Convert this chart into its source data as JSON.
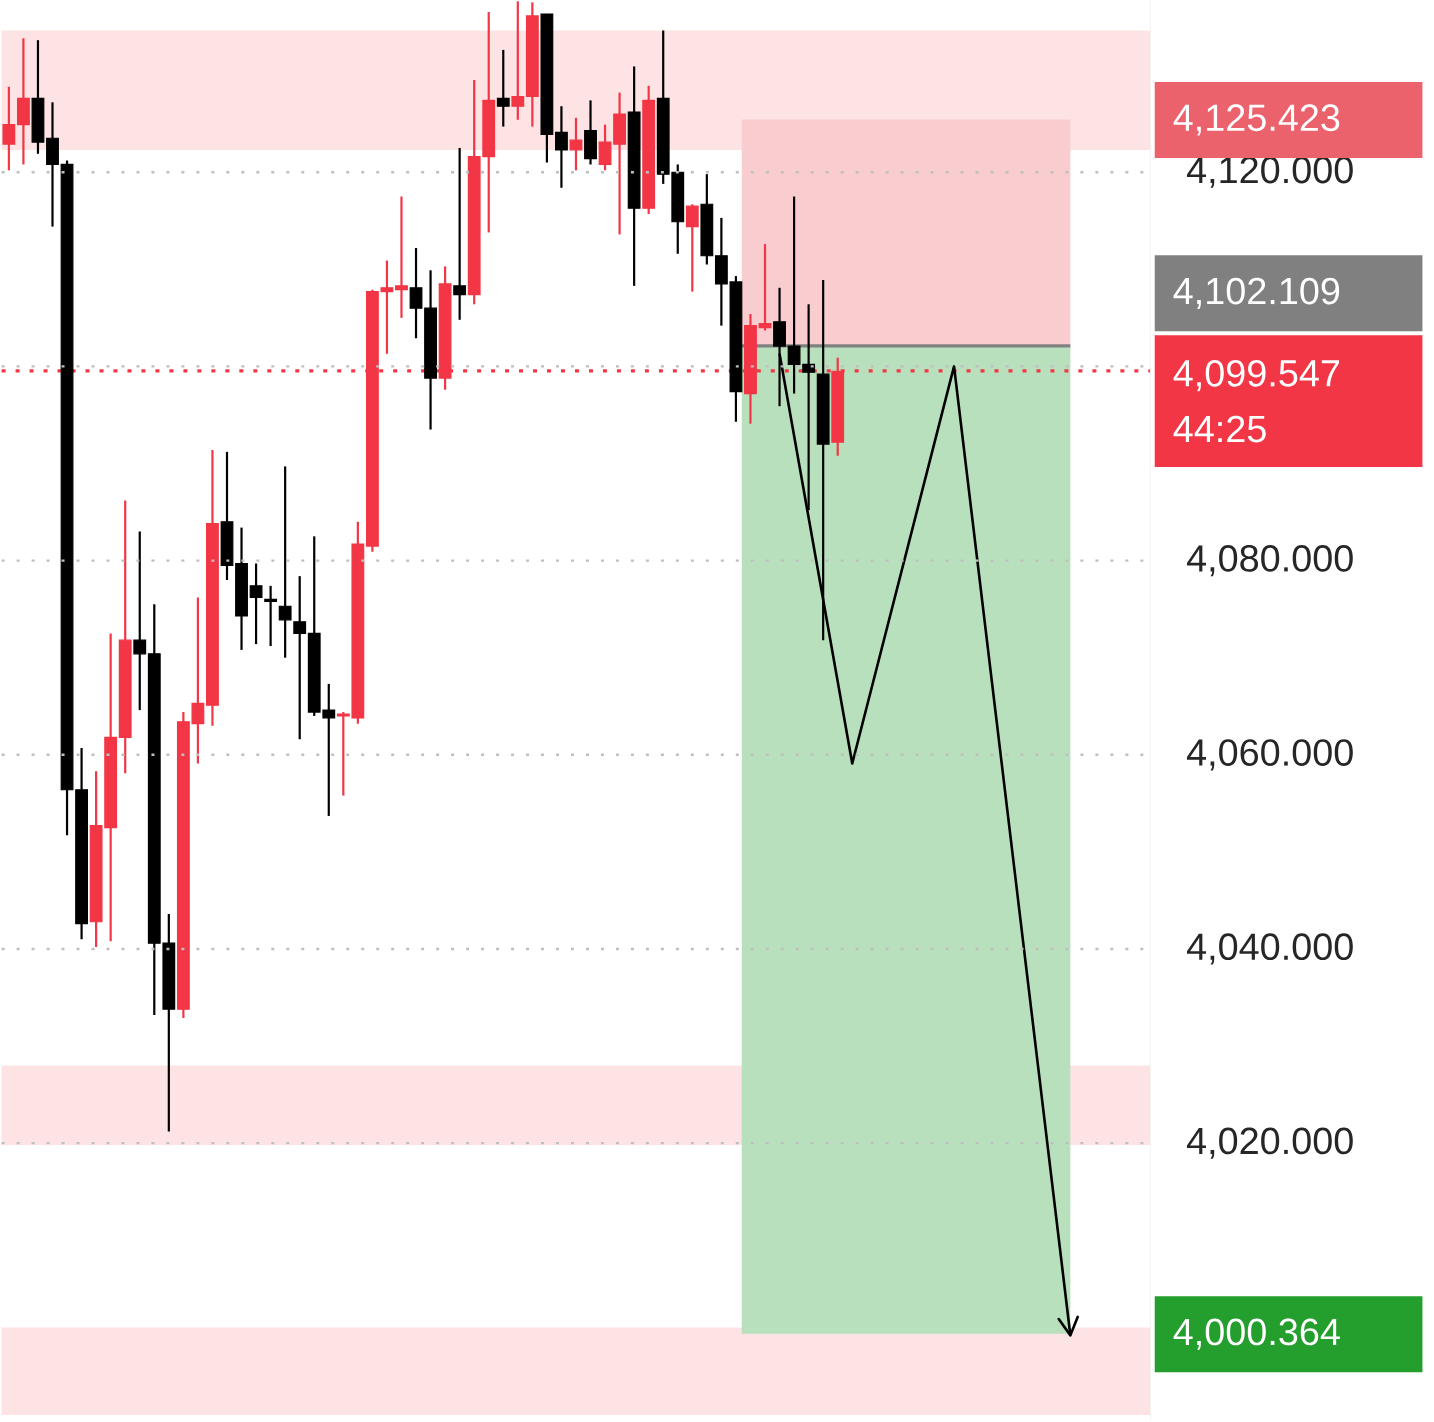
{
  "chart_data": {
    "type": "candlestick",
    "categories": [
      null,
      null,
      null,
      null,
      null,
      null,
      null,
      null,
      null,
      null,
      null,
      null,
      null,
      null,
      null,
      null,
      null,
      null,
      null,
      null,
      null,
      null,
      null,
      null,
      null,
      null,
      null,
      null,
      null,
      null,
      null,
      null,
      null,
      null,
      null,
      null,
      null,
      null,
      null,
      null,
      null,
      null,
      null,
      null,
      null,
      null,
      null,
      null,
      null,
      null,
      null,
      null,
      null,
      null,
      null,
      null,
      null,
      null,
      null,
      null,
      null,
      null,
      null,
      null,
      null,
      null,
      null,
      null,
      null,
      null,
      null,
      null,
      null,
      null,
      null,
      null,
      null,
      null,
      null
    ],
    "ohlc": [
      [
        4122.9,
        4128.8,
        4120.2,
        4124.9
      ],
      [
        4124.9,
        4133.8,
        4120.8,
        4127.6
      ],
      [
        4127.6,
        4133.6,
        4121.9,
        4123.1
      ],
      [
        4123.5,
        4127.2,
        4114.4,
        4120.8
      ],
      [
        4120.8,
        4121.2,
        4051.7,
        4056.4
      ],
      [
        4056.4,
        4060.7,
        4041.0,
        4042.6
      ],
      [
        4042.8,
        4058.3,
        4040.2,
        4052.7
      ],
      [
        4052.5,
        4072.5,
        4040.8,
        4061.8
      ],
      [
        4061.8,
        4086.2,
        4058.1,
        4071.8
      ],
      [
        4071.8,
        4083.0,
        4064.6,
        4070.4
      ],
      [
        4070.4,
        4075.5,
        4033.2,
        4040.6
      ],
      [
        4040.6,
        4043.6,
        4021.2,
        4033.8
      ],
      [
        4033.8,
        4064.4,
        4032.9,
        4063.4
      ],
      [
        4063.2,
        4076.2,
        4059.1,
        4065.3
      ],
      [
        4065.1,
        4091.4,
        4063.0,
        4083.8
      ],
      [
        4084.0,
        4091.2,
        4078.0,
        4079.5
      ],
      [
        4079.7,
        4083.4,
        4070.8,
        4074.3
      ],
      [
        4077.4,
        4079.7,
        4071.4,
        4076.2
      ],
      [
        4076.0,
        4077.4,
        4071.2,
        4075.8
      ],
      [
        4075.3,
        4089.7,
        4070.0,
        4073.9
      ],
      [
        4073.7,
        4078.4,
        4061.6,
        4072.5
      ],
      [
        4072.5,
        4082.5,
        4064.0,
        4064.4
      ],
      [
        4064.6,
        4067.3,
        4053.7,
        4063.8
      ],
      [
        4064.0,
        4064.4,
        4055.8,
        4064.2
      ],
      [
        4063.8,
        4084.0,
        4063.2,
        4081.7
      ],
      [
        4081.5,
        4107.9,
        4080.9,
        4107.7
      ],
      [
        4107.7,
        4110.9,
        4101.3,
        4108.1
      ],
      [
        4107.9,
        4117.5,
        4105.0,
        4108.3
      ],
      [
        4108.1,
        4112.2,
        4102.9,
        4106.0
      ],
      [
        4106.0,
        4109.9,
        4093.5,
        4098.8
      ],
      [
        4098.8,
        4110.3,
        4097.6,
        4108.5
      ],
      [
        4108.3,
        4122.5,
        4104.8,
        4107.4
      ],
      [
        4107.4,
        4129.5,
        4106.4,
        4121.6
      ],
      [
        4121.6,
        4136.5,
        4113.8,
        4127.4
      ],
      [
        4127.6,
        4132.6,
        4124.7,
        4126.8
      ],
      [
        4126.8,
        4137.6,
        4125.4,
        4127.8
      ],
      [
        4127.8,
        4137.5,
        4124.7,
        4136.1
      ],
      [
        4136.3,
        4136.3,
        4121.0,
        4123.9
      ],
      [
        4124.1,
        4126.8,
        4118.4,
        4122.3
      ],
      [
        4122.3,
        4125.6,
        4120.2,
        4123.3
      ],
      [
        4124.3,
        4127.4,
        4120.8,
        4121.4
      ],
      [
        4120.8,
        4124.9,
        4120.2,
        4123.1
      ],
      [
        4122.9,
        4128.2,
        4113.6,
        4126.0
      ],
      [
        4126.2,
        4130.9,
        4108.3,
        4116.3
      ],
      [
        4116.3,
        4128.9,
        4115.7,
        4127.4
      ],
      [
        4127.6,
        4134.6,
        4118.8,
        4119.8
      ],
      [
        4120.0,
        4120.8,
        4111.6,
        4114.9
      ],
      [
        4114.4,
        4116.7,
        4107.7,
        4116.5
      ],
      [
        4116.7,
        4119.8,
        4110.5,
        4111.4
      ],
      [
        4111.4,
        4115.3,
        4104.2,
        4108.5
      ],
      [
        4108.7,
        4109.3,
        4094.3,
        4097.4
      ],
      [
        4097.2,
        4105.4,
        4094.1,
        4104.2
      ],
      [
        4104.0,
        4112.6,
        4103.7,
        4104.4
      ],
      [
        4104.6,
        4108.1,
        4095.9,
        4102.1
      ],
      [
        4102.1,
        4117.5,
        4097.2,
        4100.2
      ],
      [
        4100.2,
        4106.4,
        4085.2,
        4099.4
      ],
      [
        4099.2,
        4108.9,
        4071.8,
        4092.0
      ],
      [
        4092.2,
        4100.9,
        4090.8,
        4099.5
      ],
      null,
      null,
      null,
      null,
      null,
      null,
      null,
      null,
      null,
      null,
      null,
      null,
      null,
      null,
      null,
      null,
      null,
      null,
      null,
      null,
      null
    ],
    "colors": [
      "#f23645",
      "#f23645",
      "#000000",
      "#000000",
      "#000000",
      "#000000",
      "#f23645",
      "#f23645",
      "#f23645",
      "#000000",
      "#000000",
      "#000000",
      "#f23645",
      "#f23645",
      "#f23645",
      "#000000",
      "#000000",
      "#000000",
      "#000000",
      "#000000",
      "#000000",
      "#000000",
      "#000000",
      "#f23645",
      "#f23645",
      "#f23645",
      "#f23645",
      "#f23645",
      "#000000",
      "#000000",
      "#f23645",
      "#000000",
      "#f23645",
      "#f23645",
      "#000000",
      "#f23645",
      "#f23645",
      "#000000",
      "#000000",
      "#f23645",
      "#000000",
      "#f23645",
      "#f23645",
      "#000000",
      "#f23645",
      "#000000",
      "#000000",
      "#f23645",
      "#000000",
      "#000000",
      "#000000",
      "#f23645",
      "#f23645",
      "#000000",
      "#000000",
      "#000000",
      "#000000",
      "#f23645",
      null,
      null,
      null,
      null,
      null,
      null,
      null,
      null,
      null,
      null,
      null,
      null,
      null,
      null,
      null,
      null,
      null,
      null,
      null,
      null,
      null
    ],
    "series": [
      {
        "type": "line",
        "values": [
          null,
          null,
          null,
          null,
          null,
          null,
          null,
          null,
          null,
          null,
          null,
          null,
          null,
          null,
          null,
          null,
          null,
          null,
          null,
          null,
          null,
          null,
          null,
          null,
          null,
          null,
          null,
          null,
          null,
          null,
          null,
          null,
          null,
          null,
          null,
          null,
          null,
          null,
          null,
          null,
          null,
          null,
          null,
          null,
          null,
          null,
          null,
          null,
          null,
          null,
          null,
          null,
          null,
          4101.3,
          null,
          null,
          null,
          null,
          4059.1,
          null,
          null,
          null,
          null,
          null,
          null,
          4100.0,
          null,
          null,
          null,
          null,
          null,
          null,
          null,
          4000.2,
          null,
          null,
          null,
          null,
          null
        ],
        "color": "#000000"
      }
    ],
    "ylim": [
      3991.4,
      4137.7
    ],
    "yticks": [
      {
        "value": 4020,
        "label": "4,020.000"
      },
      {
        "value": 4040,
        "label": "4,040.000"
      },
      {
        "value": 4060,
        "label": "4,060.000"
      },
      {
        "value": 4080,
        "label": "4,080.000"
      },
      {
        "value": 4100,
        "label": null
      },
      {
        "value": 4120,
        "label": "4,120.000"
      }
    ],
    "tick_labels": "y",
    "grid": "y",
    "bands": [
      {
        "axis": "y",
        "from": 4122.3,
        "to": 4134.6,
        "color": "#fde3e4"
      },
      {
        "axis": "y",
        "from": 4019.8,
        "to": 4028.0,
        "color": "#fde3e4"
      },
      {
        "axis": "y",
        "from": 3992.0,
        "to": 4001.0,
        "color": "#fde3e4"
      },
      {
        "axis": "y",
        "from": 4102.109,
        "to": 4125.423,
        "label": "4,125.423",
        "color": "#f9cdd0"
      },
      {
        "axis": "y",
        "from": 4102.109,
        "to": 4000.364,
        "label": "4,000.364",
        "color": "#b9e0bc"
      }
    ],
    "ref_lines": [
      {
        "axis": "y",
        "value": 4099.547,
        "label": "4,099.547",
        "color": "#f23645",
        "line_style": "dotted"
      },
      {
        "axis": "y",
        "value": 4102.109,
        "label": "4,102.109",
        "color": "#808080",
        "line_style": "solid"
      }
    ],
    "annotations": [
      "44:25"
    ]
  }
}
